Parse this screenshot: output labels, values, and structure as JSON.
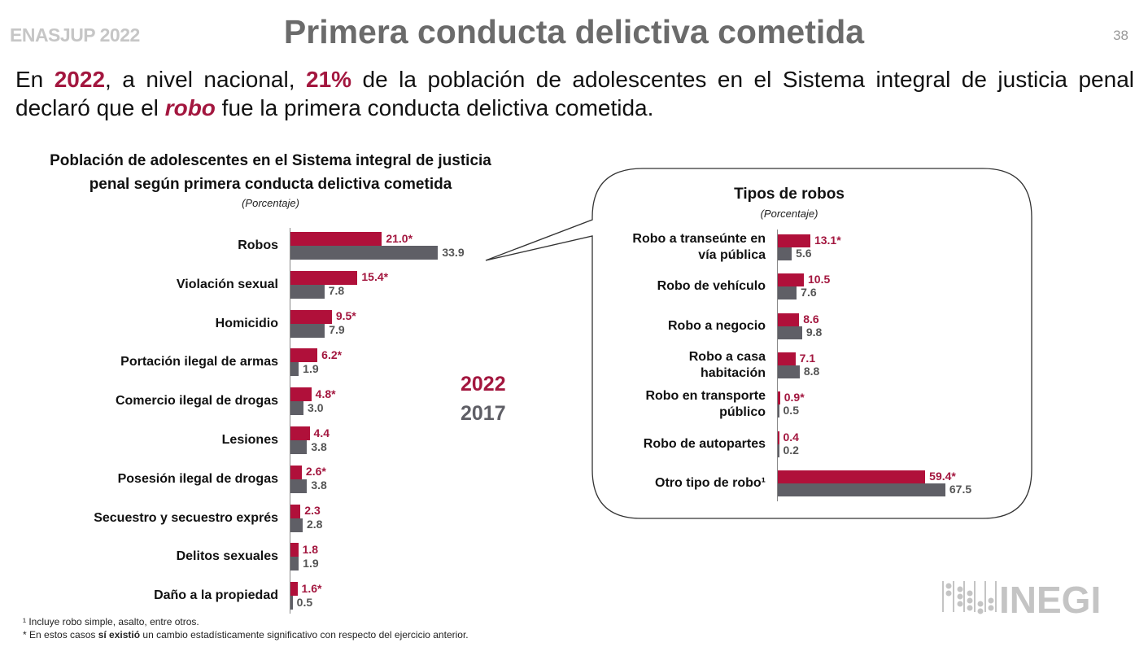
{
  "header": {
    "brand": "ENASJUP 2022",
    "title": "Primera conducta delictiva cometida",
    "page_number": "38"
  },
  "lead": {
    "p1": "En ",
    "year": "2022",
    "p2": ", a nivel nacional, ",
    "pct": "21%",
    "p3": " de la población de adolescentes en el Sistema integral de justicia penal declaró que el ",
    "robo": "robo",
    "p4": " fue la primera conducta delictiva cometida."
  },
  "legend": {
    "series_2022": "2022",
    "series_2017": "2017"
  },
  "colors": {
    "series_2022": "#b0103a",
    "series_2017": "#5f5f66",
    "label_2022": "#a3173f",
    "label_2017": "#555555"
  },
  "footnotes": {
    "note1": "¹ Incluye robo simple, asalto, entre otros.",
    "note2_a": "* En estos casos ",
    "note2_b": "sí existió",
    "note2_c": " un cambio estadísticamente significativo con respecto del ejercicio anterior."
  },
  "logo": {
    "text": "INEGI"
  },
  "chart_data": [
    {
      "type": "bar",
      "orientation": "horizontal",
      "title": "Población de adolescentes en el Sistema integral de justicia penal según primera conducta delictiva cometida",
      "unit": "(Porcentaje)",
      "categories": [
        "Robos",
        "Violación sexual",
        "Homicidio",
        "Portación ilegal de armas",
        "Comercio ilegal de drogas",
        "Lesiones",
        "Posesión ilegal de drogas",
        "Secuestro y secuestro exprés",
        "Delitos sexuales",
        "Daño a la propiedad"
      ],
      "series": [
        {
          "name": "2022",
          "values": [
            21.0,
            15.4,
            9.5,
            6.2,
            4.8,
            4.4,
            2.6,
            2.3,
            1.8,
            1.6
          ],
          "labels": [
            "21.0*",
            "15.4*",
            "9.5*",
            "6.2*",
            "4.8*",
            "4.4",
            "2.6*",
            "2.3",
            "1.8",
            "1.6*"
          ]
        },
        {
          "name": "2017",
          "values": [
            33.9,
            7.8,
            7.9,
            1.9,
            3.0,
            3.8,
            3.8,
            2.8,
            1.9,
            0.5
          ],
          "labels": [
            "33.9",
            "7.8",
            "7.9",
            "1.9",
            "3.0",
            "3.8",
            "3.8",
            "2.8",
            "1.9",
            "0.5"
          ]
        }
      ]
    },
    {
      "type": "bar",
      "orientation": "horizontal",
      "title": "Tipos de robos",
      "unit": "(Porcentaje)",
      "categories": [
        "Robo a transeúnte en vía pública",
        "Robo de vehículo",
        "Robo a negocio",
        "Robo a casa habitación",
        "Robo en transporte público",
        "Robo de autopartes",
        "Otro tipo de robo¹"
      ],
      "series": [
        {
          "name": "2022",
          "values": [
            13.1,
            10.5,
            8.6,
            7.1,
            0.9,
            0.4,
            59.4
          ],
          "labels": [
            "13.1*",
            "10.5",
            "8.6",
            "7.1",
            "0.9*",
            "0.4",
            "59.4*"
          ]
        },
        {
          "name": "2017",
          "values": [
            5.6,
            7.6,
            9.8,
            8.8,
            0.5,
            0.2,
            67.5
          ],
          "labels": [
            "5.6",
            "7.6",
            "9.8",
            "8.8",
            "0.5",
            "0.2",
            "67.5"
          ]
        }
      ]
    }
  ]
}
